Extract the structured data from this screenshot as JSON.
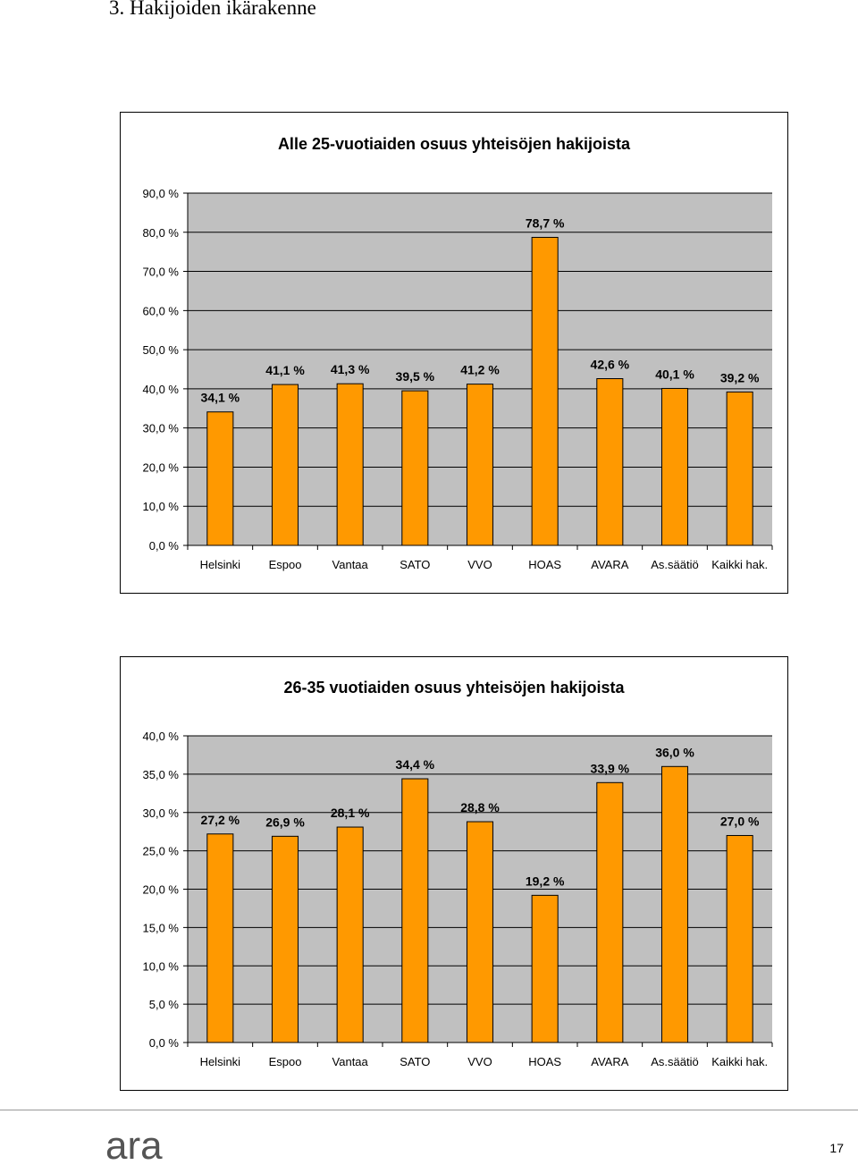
{
  "page": {
    "heading": "3. Hakijoiden ikärakenne",
    "page_number": "17",
    "logo_text": "ara"
  },
  "colors": {
    "bar": "#FF9900",
    "plot_background": "#C0C0C0",
    "gridline": "#000000",
    "logo": "#555555"
  },
  "chart_data": [
    {
      "type": "bar",
      "title": "Alle 25-vuotiaiden osuus yhteisöjen hakijoista",
      "categories": [
        "Helsinki",
        "Espoo",
        "Vantaa",
        "SATO",
        "VVO",
        "HOAS",
        "AVARA",
        "As.säätiö",
        "Kaikki hak."
      ],
      "values": [
        34.1,
        41.1,
        41.3,
        39.5,
        41.2,
        78.7,
        42.6,
        40.1,
        39.2
      ],
      "value_labels": [
        "34,1 %",
        "41,1 %",
        "41,3 %",
        "39,5 %",
        "41,2 %",
        "78,7 %",
        "42,6 %",
        "40,1 %",
        "39,2 %"
      ],
      "yticks": [
        0,
        10,
        20,
        30,
        40,
        50,
        60,
        70,
        80,
        90
      ],
      "ytick_labels": [
        "0,0 %",
        "10,0 %",
        "20,0 %",
        "30,0 %",
        "40,0 %",
        "50,0 %",
        "60,0 %",
        "70,0 %",
        "80,0 %",
        "90,0 %"
      ],
      "ylim": [
        0,
        90
      ],
      "xlabel": "",
      "ylabel": "",
      "grid": true,
      "legend": "none"
    },
    {
      "type": "bar",
      "title": "26-35 vuotiaiden osuus yhteisöjen hakijoista",
      "categories": [
        "Helsinki",
        "Espoo",
        "Vantaa",
        "SATO",
        "VVO",
        "HOAS",
        "AVARA",
        "As.säätiö",
        "Kaikki hak."
      ],
      "values": [
        27.2,
        26.9,
        28.1,
        34.4,
        28.8,
        19.2,
        33.9,
        36.0,
        27.0
      ],
      "value_labels": [
        "27,2 %",
        "26,9 %",
        "28,1 %",
        "34,4 %",
        "28,8 %",
        "19,2 %",
        "33,9 %",
        "36,0 %",
        "27,0 %"
      ],
      "yticks": [
        0,
        5,
        10,
        15,
        20,
        25,
        30,
        35,
        40
      ],
      "ytick_labels": [
        "0,0 %",
        "5,0 %",
        "10,0 %",
        "15,0 %",
        "20,0 %",
        "25,0 %",
        "30,0 %",
        "35,0 %",
        "40,0 %"
      ],
      "ylim": [
        0,
        40
      ],
      "xlabel": "",
      "ylabel": "",
      "grid": true,
      "legend": "none"
    }
  ]
}
